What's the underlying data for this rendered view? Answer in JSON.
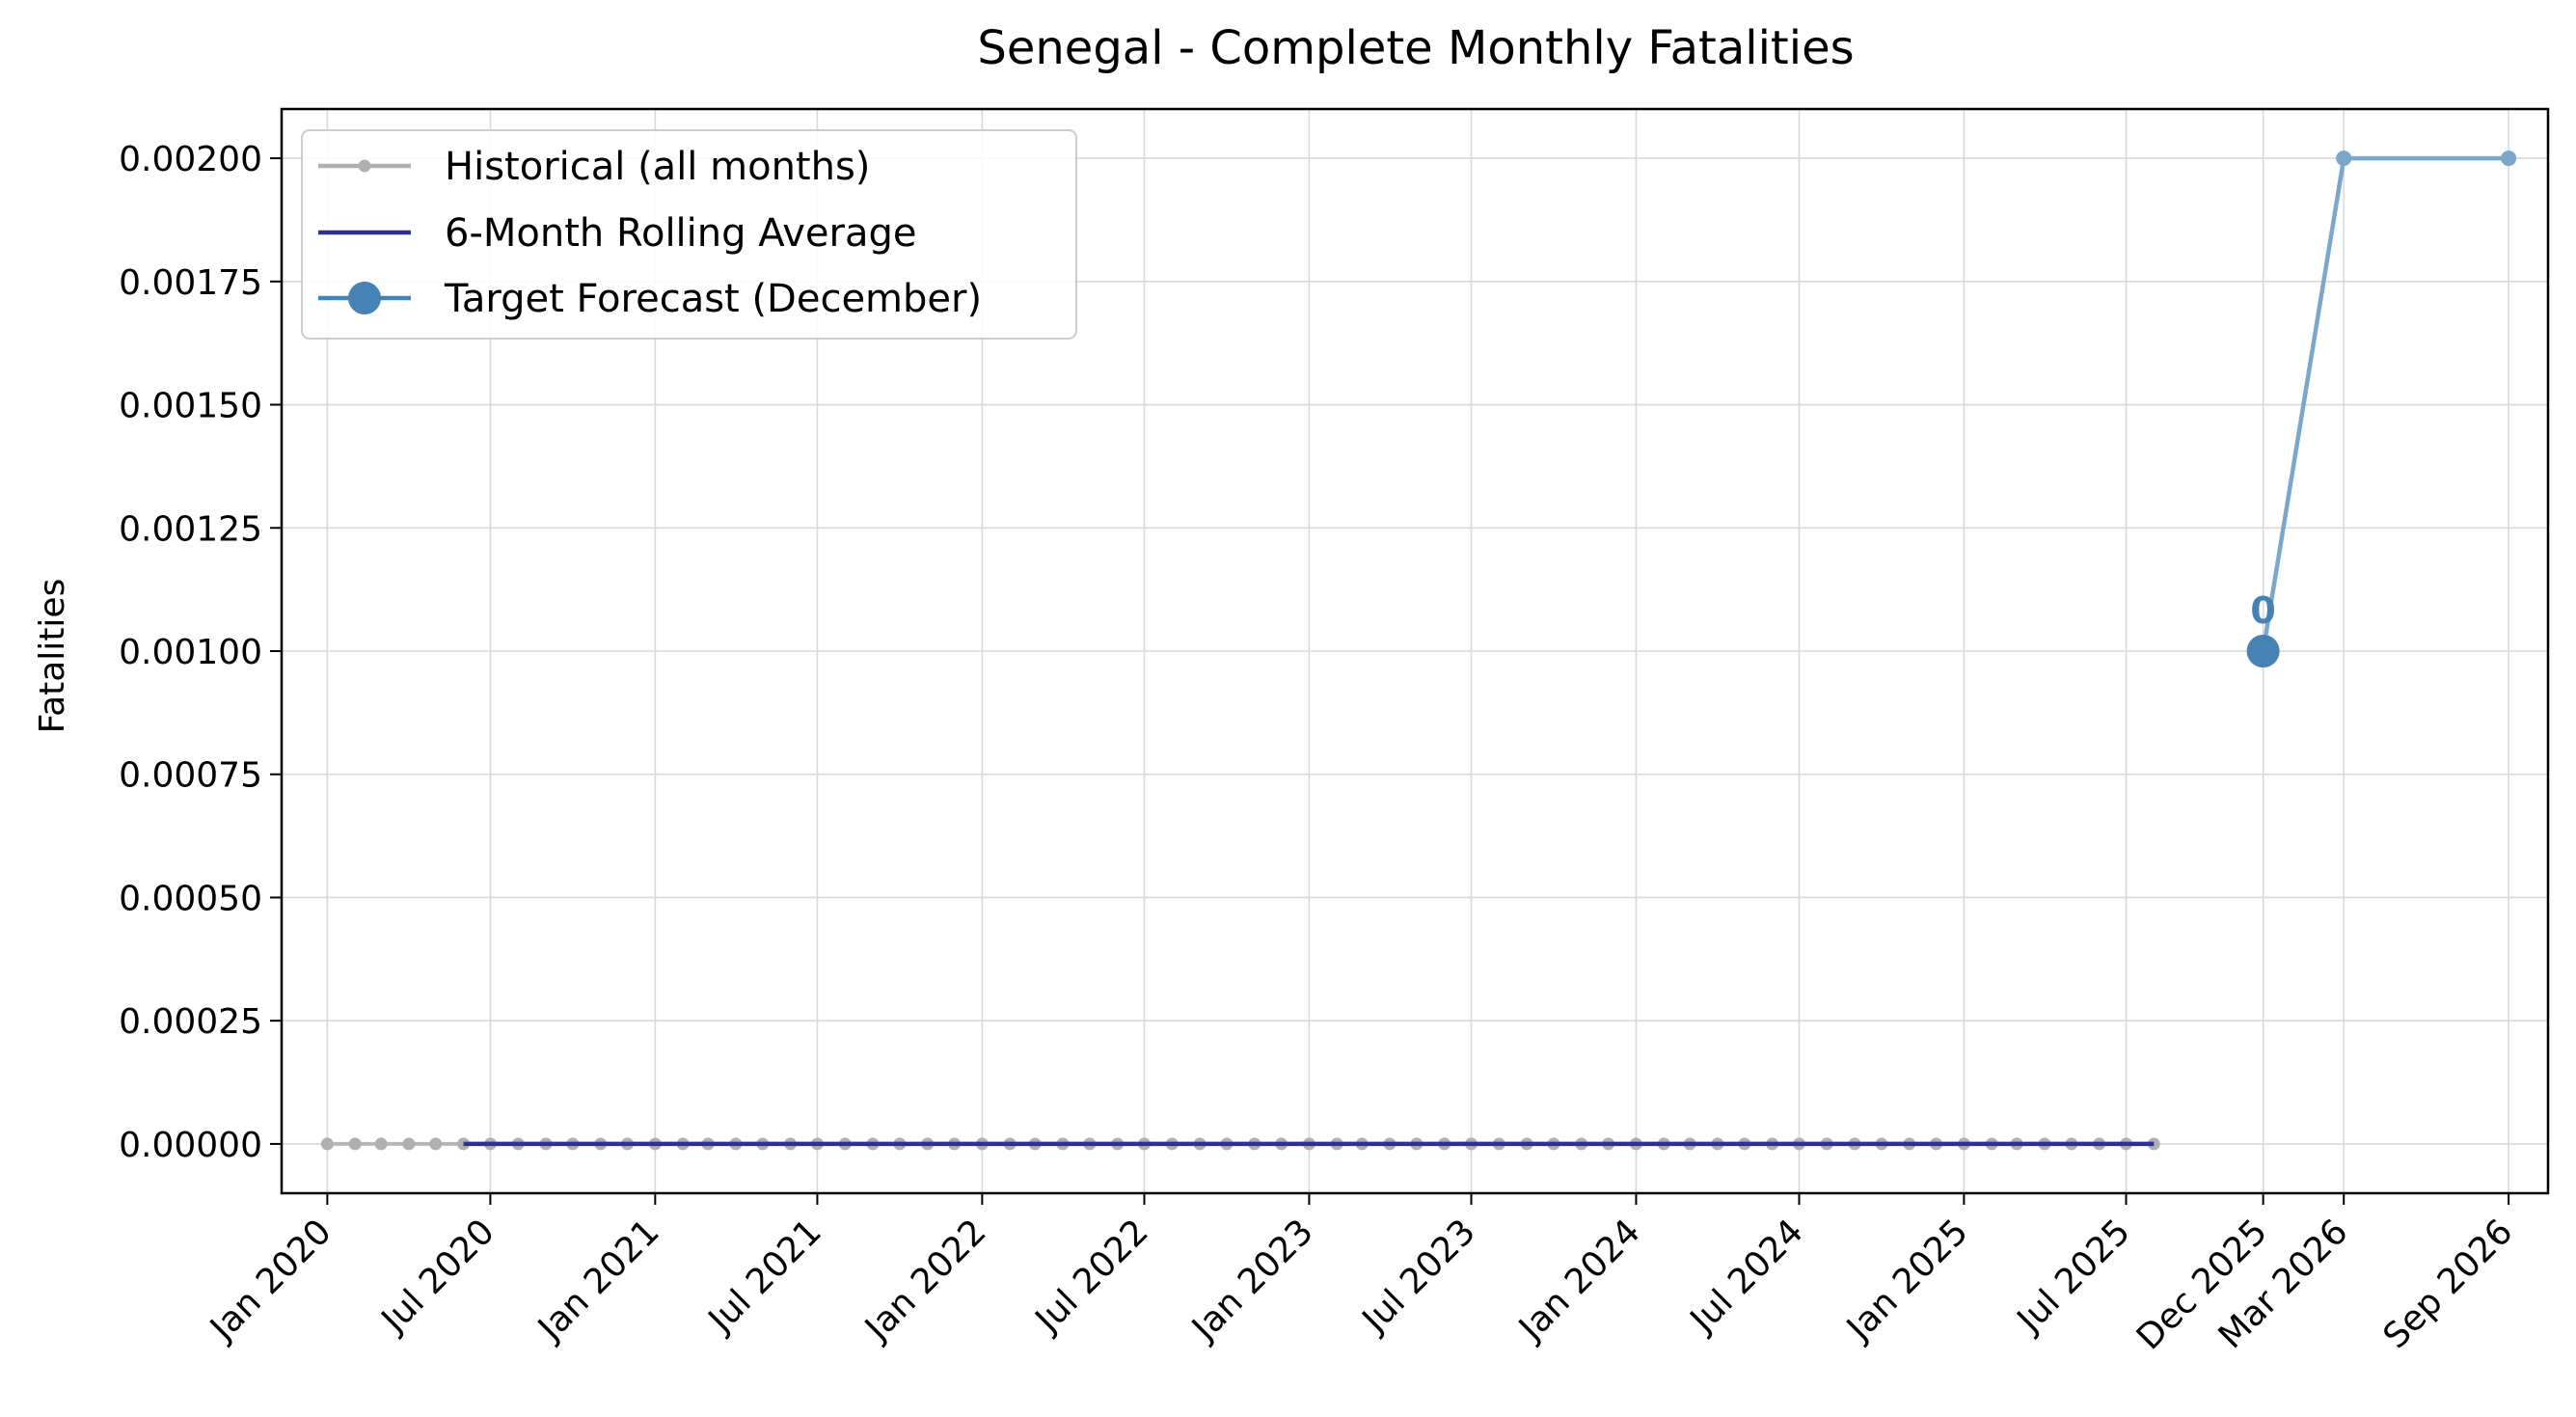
{
  "chart_data": {
    "type": "line",
    "title": "Senegal - Complete Monthly Fatalities",
    "xlabel": "",
    "ylabel": "Fatalities",
    "ylim": [
      -0.0001,
      0.0021
    ],
    "xlim": [
      "2019-11-11",
      "2026-10-15"
    ],
    "grid": true,
    "legend_position": "top-left",
    "x_ticks": [
      {
        "date": "2020-01-01",
        "label": "Jan 2020"
      },
      {
        "date": "2020-07-01",
        "label": "Jul 2020"
      },
      {
        "date": "2021-01-01",
        "label": "Jan 2021"
      },
      {
        "date": "2021-07-01",
        "label": "Jul 2021"
      },
      {
        "date": "2022-01-01",
        "label": "Jan 2022"
      },
      {
        "date": "2022-07-01",
        "label": "Jul 2022"
      },
      {
        "date": "2023-01-01",
        "label": "Jan 2023"
      },
      {
        "date": "2023-07-01",
        "label": "Jul 2023"
      },
      {
        "date": "2024-01-01",
        "label": "Jan 2024"
      },
      {
        "date": "2024-07-01",
        "label": "Jul 2024"
      },
      {
        "date": "2025-01-01",
        "label": "Jan 2025"
      },
      {
        "date": "2025-07-01",
        "label": "Jul 2025"
      },
      {
        "date": "2025-12-01",
        "label": "Dec 2025"
      },
      {
        "date": "2026-03-01",
        "label": "Mar 2026"
      },
      {
        "date": "2026-09-01",
        "label": "Sep 2026"
      }
    ],
    "y_ticks": [
      {
        "value": 0.0,
        "label": "0.00000"
      },
      {
        "value": 0.00025,
        "label": "0.00025"
      },
      {
        "value": 0.0005,
        "label": "0.00050"
      },
      {
        "value": 0.00075,
        "label": "0.00075"
      },
      {
        "value": 0.001,
        "label": "0.00100"
      },
      {
        "value": 0.00125,
        "label": "0.00125"
      },
      {
        "value": 0.0015,
        "label": "0.00150"
      },
      {
        "value": 0.00175,
        "label": "0.00175"
      },
      {
        "value": 0.002,
        "label": "0.00200"
      }
    ],
    "series": [
      {
        "name": "Historical (all months)",
        "color": "#b0b0b0",
        "marker": "small-dot",
        "x_start": "2020-01-01",
        "x_end": "2025-08-01",
        "frequency": "monthly",
        "values_constant": 0.0
      },
      {
        "name": "6-Month Rolling Average",
        "color": "#2e3192",
        "marker": "none",
        "x_start": "2020-06-01",
        "x_end": "2025-08-01",
        "frequency": "monthly",
        "values_constant": 0.0
      },
      {
        "name": "Target Forecast (December)",
        "color": "#4682b4",
        "marker": "large-dot",
        "points": [
          {
            "x": "2025-12-01",
            "y": 0.001
          }
        ]
      },
      {
        "color": "#7ba7cb",
        "marker": "dot",
        "points": [
          {
            "x": "2025-12-01",
            "y": 0.001
          },
          {
            "x": "2026-03-01",
            "y": 0.002
          },
          {
            "x": "2026-09-01",
            "y": 0.002
          }
        ]
      }
    ],
    "annotations": [
      {
        "text": "0",
        "x": "2025-12-01",
        "y": 0.001,
        "color": "#4682b4"
      }
    ]
  }
}
